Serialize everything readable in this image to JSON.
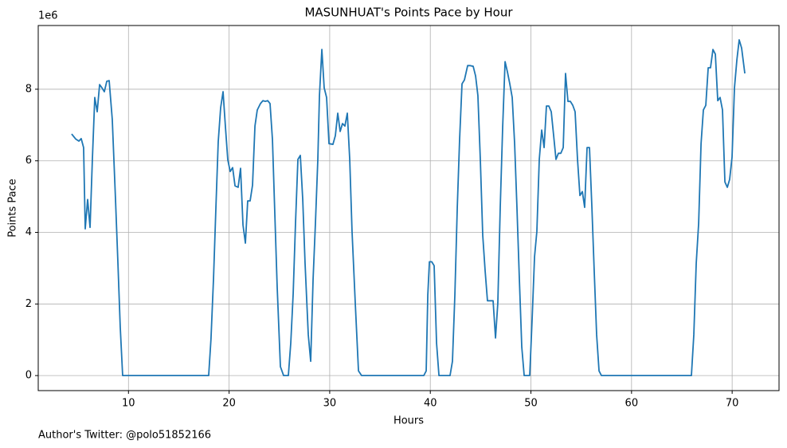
{
  "chart_data": {
    "type": "line",
    "title": "MASUNHUAT's Points Pace by Hour",
    "xlabel": "Hours",
    "ylabel": "Points Pace",
    "y_offset_label": "1e6",
    "footer": "Author's Twitter: @polo51852166",
    "color": "#1f77b4",
    "grid": true,
    "xlim": [
      1.03,
      74.66
    ],
    "ylim": [
      -0.42,
      9.78
    ],
    "xticks": [
      10,
      20,
      30,
      40,
      50,
      60,
      70
    ],
    "yticks": [
      0,
      2,
      4,
      6,
      8
    ],
    "x": [
      4.35,
      4.75,
      5.07,
      5.3,
      5.54,
      5.7,
      5.94,
      6.18,
      6.41,
      6.65,
      6.89,
      7.13,
      7.36,
      7.6,
      7.84,
      8.08,
      8.39,
      8.71,
      8.95,
      9.18,
      9.42,
      17.97,
      18.2,
      18.45,
      18.69,
      18.92,
      19.16,
      19.4,
      19.64,
      19.87,
      20.11,
      20.35,
      20.59,
      20.9,
      21.14,
      21.38,
      21.62,
      21.85,
      22.09,
      22.33,
      22.57,
      22.8,
      23.12,
      23.36,
      23.6,
      23.84,
      24.07,
      24.31,
      24.55,
      24.78,
      25.1,
      25.42,
      25.89,
      26.13,
      26.37,
      26.6,
      26.84,
      27.08,
      27.32,
      27.55,
      27.87,
      28.11,
      28.35,
      28.58,
      28.82,
      28.98,
      29.22,
      29.45,
      29.69,
      29.93,
      30.32,
      30.56,
      30.8,
      31.04,
      31.27,
      31.51,
      31.75,
      31.99,
      32.22,
      32.54,
      32.86,
      33.17,
      39.35,
      39.59,
      39.75,
      39.91,
      40.14,
      40.38,
      40.62,
      40.86,
      41.96,
      42.2,
      42.44,
      42.68,
      42.91,
      43.15,
      43.39,
      43.71,
      43.94,
      44.26,
      44.5,
      44.73,
      44.97,
      45.21,
      45.45,
      45.68,
      46.0,
      46.24,
      46.48,
      46.71,
      46.95,
      47.19,
      47.43,
      47.66,
      47.9,
      48.14,
      48.38,
      48.61,
      48.85,
      49.09,
      49.33,
      49.88,
      50.12,
      50.36,
      50.59,
      50.83,
      51.07,
      51.31,
      51.54,
      51.78,
      52.02,
      52.26,
      52.49,
      52.73,
      52.97,
      53.21,
      53.44,
      53.68,
      53.92,
      54.16,
      54.39,
      54.63,
      54.87,
      55.11,
      55.34,
      55.58,
      55.82,
      56.06,
      56.29,
      56.53,
      56.77,
      57.01,
      65.95,
      66.19,
      66.43,
      66.67,
      66.91,
      67.14,
      67.38,
      67.62,
      67.85,
      68.09,
      68.33,
      68.57,
      68.8,
      69.04,
      69.28,
      69.52,
      69.75,
      69.99,
      70.23,
      70.47,
      70.7,
      70.94,
      71.26
    ],
    "values": [
      6.75,
      6.61,
      6.55,
      6.62,
      6.37,
      4.1,
      4.92,
      4.14,
      6.03,
      7.77,
      7.37,
      8.13,
      8.04,
      7.93,
      8.22,
      8.24,
      7.15,
      4.92,
      3.14,
      1.36,
      0,
      0,
      1.02,
      2.7,
      4.7,
      6.53,
      7.48,
      7.93,
      6.93,
      6.03,
      5.7,
      5.81,
      5.3,
      5.26,
      5.79,
      4.21,
      3.7,
      4.88,
      4.88,
      5.32,
      6.97,
      7.42,
      7.6,
      7.68,
      7.66,
      7.68,
      7.6,
      6.59,
      4.48,
      2.47,
      0.25,
      0,
      0,
      0.91,
      2.29,
      4.25,
      6.04,
      6.15,
      4.92,
      3.14,
      1.14,
      0.4,
      2.7,
      4.25,
      6.04,
      7.82,
      9.11,
      8.04,
      7.77,
      6.48,
      6.46,
      6.7,
      7.33,
      6.82,
      7.04,
      6.97,
      7.33,
      6.04,
      4.03,
      2.03,
      0.13,
      0,
      0,
      0.13,
      2.25,
      3.18,
      3.18,
      3.07,
      0.91,
      0,
      0,
      0.4,
      2.25,
      4.7,
      6.59,
      8.15,
      8.26,
      8.66,
      8.66,
      8.64,
      8.37,
      7.82,
      6.04,
      3.92,
      2.92,
      2.09,
      2.09,
      2.09,
      1.05,
      2.03,
      4.7,
      6.93,
      8.77,
      8.49,
      8.15,
      7.77,
      6.48,
      4.7,
      2.7,
      0.8,
      0,
      0,
      1.58,
      3.32,
      4.03,
      6.04,
      6.86,
      6.37,
      7.53,
      7.53,
      7.37,
      6.7,
      6.04,
      6.21,
      6.21,
      6.37,
      8.44,
      7.66,
      7.66,
      7.55,
      7.37,
      6.04,
      5.03,
      5.14,
      4.7,
      6.37,
      6.37,
      4.7,
      2.92,
      1.14,
      0.13,
      0,
      0,
      1.14,
      3.14,
      4.25,
      6.48,
      7.42,
      7.55,
      8.6,
      8.6,
      9.11,
      8.98,
      7.68,
      7.77,
      7.42,
      5.41,
      5.26,
      5.48,
      6.1,
      8.04,
      8.82,
      9.38,
      9.15,
      8.44
    ]
  }
}
